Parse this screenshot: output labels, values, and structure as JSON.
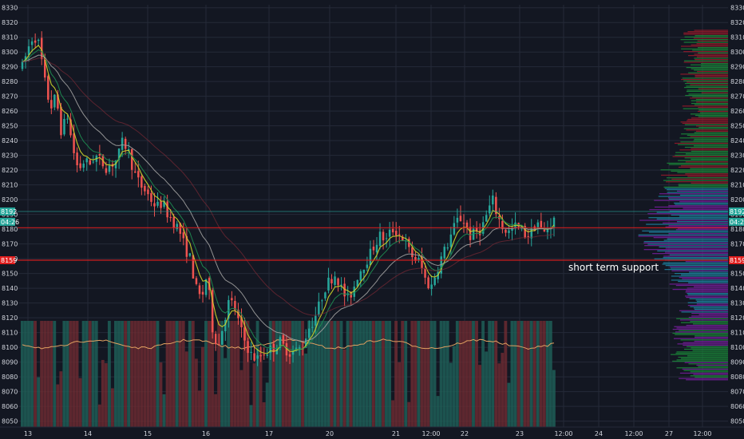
{
  "colors": {
    "background": "#131722",
    "grid": "#242a38",
    "up": "#26a69a",
    "down": "#ef5350",
    "vol_up": "#1f5e57",
    "vol_down": "#6b2a31",
    "ma_fast": "#c9d12a",
    "ma_mid": "#1d8a50",
    "ma_slow": "#9a9a9a",
    "ma_long": "#7a2a35",
    "vol_ma": "#e0a060",
    "level_line": "#e01e1e",
    "price_badge": "#26a69a",
    "support_badge": "#e01e1e",
    "vp_green": "#1b8e3a",
    "vp_red": "#9c1a2a",
    "vp_purple": "#7b1fa2",
    "vp_teal": "#1e88a8"
  },
  "chart_data": {
    "type": "candlestick",
    "ylim": [
      8046,
      8332
    ],
    "y_ticks": [
      "8330",
      "8320",
      "8310",
      "8300",
      "8290",
      "8280",
      "8270",
      "8260",
      "8250",
      "8240",
      "8230",
      "8220",
      "8210",
      "8200",
      "8190",
      "8180",
      "8170",
      "8160",
      "8150",
      "8140",
      "8130",
      "8120",
      "8110",
      "8100",
      "8090",
      "8080",
      "8070",
      "8060",
      "8050"
    ],
    "x_ticks": [
      "13",
      "14",
      "15",
      "16",
      "17",
      "20",
      "21",
      "12:00",
      "22",
      "23",
      "12:00",
      "24",
      "12:00",
      "27",
      "12:00"
    ],
    "grid": true,
    "candles_from_image": 166,
    "series_path_estimated": [
      8290,
      8302,
      8312,
      8305,
      8280,
      8262,
      8270,
      8245,
      8258,
      8235,
      8220,
      8226,
      8224,
      8230,
      8226,
      8222,
      8224,
      8228,
      8240,
      8232,
      8218,
      8210,
      8206,
      8200,
      8195,
      8198,
      8190,
      8185,
      8180,
      8168,
      8160,
      8140,
      8132,
      8150,
      8112,
      8100,
      8118,
      8132,
      8126,
      8112,
      8102,
      8094,
      8092,
      8096,
      8098,
      8100,
      8104,
      8099,
      8096,
      8098,
      8100,
      8112,
      8118,
      8128,
      8140,
      8146,
      8150,
      8140,
      8132,
      8138,
      8150,
      8156,
      8162,
      8170,
      8176,
      8172,
      8180,
      8178,
      8174,
      8166,
      8160,
      8158,
      8146,
      8140,
      8152,
      8162,
      8170,
      8180,
      8188,
      8185,
      8175,
      8178,
      8180,
      8190,
      8200,
      8188,
      8180,
      8178,
      8182,
      8180,
      8176,
      8178,
      8186,
      8176,
      8182,
      8186
    ],
    "moving_averages": [
      "ma_fast",
      "ma_mid",
      "ma_slow",
      "ma_long"
    ],
    "horizontal_levels": [
      8192,
      8181,
      8159
    ],
    "price_badges": [
      {
        "text": "8192",
        "value": 8192,
        "color_key": "price_badge"
      },
      {
        "text": "04:26",
        "value": 8185,
        "color_key": "price_badge"
      },
      {
        "text": "8159",
        "value": 8159,
        "color_key": "support_badge"
      }
    ],
    "annotations": [
      {
        "text": "short term support",
        "value": 8154
      }
    ],
    "volume_profile": {
      "right_side": true,
      "levels_from": 8078,
      "levels_to": 8315
    }
  }
}
